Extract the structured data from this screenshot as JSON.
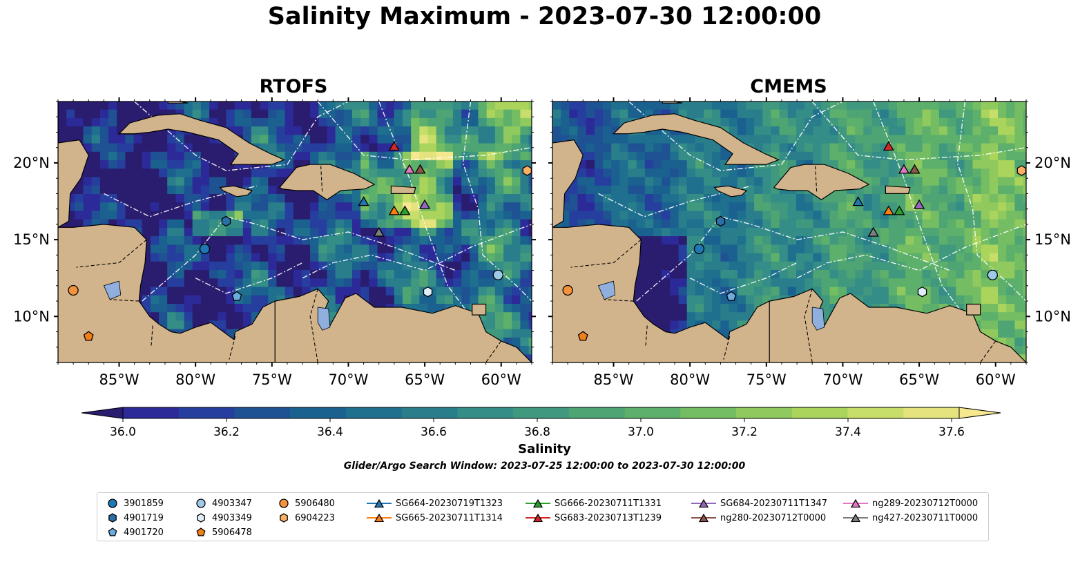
{
  "title": "Salinity Maximum - 2023-07-30 12:00:00",
  "panels": [
    {
      "title": "RTOFS",
      "field": "rtofs"
    },
    {
      "title": "CMEMS",
      "field": "cmems"
    }
  ],
  "map": {
    "lon_range": [
      -89,
      -58
    ],
    "lat_range": [
      7,
      24
    ],
    "lon_ticks": [
      "85°W",
      "80°W",
      "75°W",
      "70°W",
      "65°W",
      "60°W"
    ],
    "lon_tick_values": [
      -85,
      -80,
      -75,
      -70,
      -65,
      -60
    ],
    "lat_ticks": [
      "20°N",
      "15°N",
      "10°N"
    ],
    "lat_tick_values": [
      20,
      15,
      10
    ],
    "land_color": "#d2b48c",
    "lake_color": "#8fb0de",
    "boundary_style": "white dash-dot EEZ lines"
  },
  "colorbar": {
    "label": "Salinity",
    "ticks": [
      "36.0",
      "36.2",
      "36.4",
      "36.6",
      "36.8",
      "37.0",
      "37.2",
      "37.4",
      "37.6"
    ],
    "range": [
      36.0,
      37.7
    ],
    "colors": [
      "#2a1c6e",
      "#2c2a98",
      "#263f9f",
      "#1f5293",
      "#1a6190",
      "#1f6f8f",
      "#2a7e8c",
      "#348d86",
      "#40997e",
      "#4ea573",
      "#5cb06b",
      "#74bd63",
      "#90c95d",
      "#aad45c",
      "#c8de6a",
      "#e4e37e",
      "#f6e88e"
    ]
  },
  "window_text": "Glider/Argo Search Window: 2023-07-25 12:00:00 to 2023-07-30 12:00:00",
  "platforms": [
    {
      "name": "3901859",
      "marker": "circle",
      "color": "#1f77b4",
      "lon": -79.4,
      "lat": 14.4
    },
    {
      "name": "4901719",
      "marker": "hexagon",
      "color": "#2b6fa8",
      "lon": -78.0,
      "lat": 16.2
    },
    {
      "name": "4901720",
      "marker": "pentagon",
      "color": "#6aaee0",
      "lon": -77.3,
      "lat": 11.3
    },
    {
      "name": "4903347",
      "marker": "circle",
      "color": "#9ecae9",
      "lon": -60.2,
      "lat": 12.7
    },
    {
      "name": "4903349",
      "marker": "hexagon",
      "color": "#deeefa",
      "lon": -64.8,
      "lat": 11.6
    },
    {
      "name": "5906478",
      "marker": "pentagon",
      "color": "#f17f17",
      "lon": -87.0,
      "lat": 8.7
    },
    {
      "name": "5906480",
      "marker": "circle",
      "color": "#f5923c",
      "lon": -88.0,
      "lat": 11.7
    },
    {
      "name": "6904223",
      "marker": "hexagon",
      "color": "#fdb064",
      "lon": -58.3,
      "lat": 19.5
    },
    {
      "name": "SG664-20230719T1323",
      "marker": "triangle",
      "color": "#1f77b4",
      "lon": -69.0,
      "lat": 17.5
    },
    {
      "name": "SG665-20230711T1314",
      "marker": "triangle",
      "color": "#ff7f0e",
      "lon": -67.0,
      "lat": 16.9
    },
    {
      "name": "SG666-20230711T1331",
      "marker": "triangle",
      "color": "#2ca02c",
      "lon": -66.3,
      "lat": 16.9
    },
    {
      "name": "SG683-20230713T1239",
      "marker": "triangle",
      "color": "#d62728",
      "lon": -67.0,
      "lat": 21.1
    },
    {
      "name": "SG684-20230711T1347",
      "marker": "triangle",
      "color": "#9467bd",
      "lon": -65.0,
      "lat": 17.3
    },
    {
      "name": "ng280-20230712T0000",
      "marker": "triangle",
      "color": "#8c564b",
      "lon": -65.3,
      "lat": 19.6
    },
    {
      "name": "ng289-20230712T0000",
      "marker": "triangle",
      "color": "#e377c2",
      "lon": -66.0,
      "lat": 19.6
    },
    {
      "name": "ng427-20230711T0000",
      "marker": "triangle",
      "color": "#7f7f7f",
      "lon": -68.0,
      "lat": 15.5
    }
  ]
}
